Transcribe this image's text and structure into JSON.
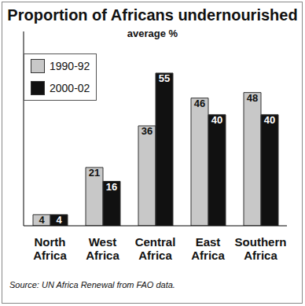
{
  "chart_data": {
    "type": "bar",
    "title": "Proportion of Africans undernourished",
    "subtitle": "average %",
    "categories": [
      "North Africa",
      "West Africa",
      "Central Africa",
      "East Africa",
      "Southern Africa"
    ],
    "series": [
      {
        "name": "1990-92",
        "color": "#c8c8c8",
        "values": [
          4,
          21,
          36,
          46,
          48
        ]
      },
      {
        "name": "2000-02",
        "color": "#111111",
        "values": [
          4,
          16,
          55,
          40,
          40
        ]
      }
    ],
    "ylim": [
      0,
      70
    ],
    "data_labels": true,
    "tick_labels": "x",
    "legend": "upper left",
    "annotations": [
      "Source: UN Africa Renewal from FAO data."
    ]
  }
}
